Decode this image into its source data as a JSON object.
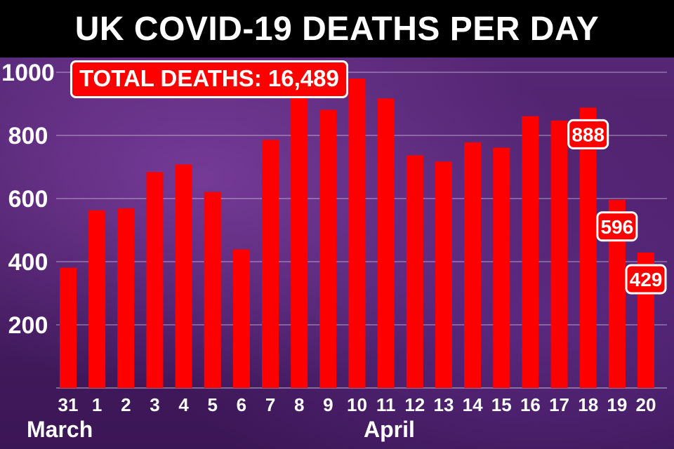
{
  "title": "UK COVID-19 DEATHS PER DAY",
  "total_label": "TOTAL DEATHS: 16,489",
  "months": {
    "first": "March",
    "second": "April"
  },
  "colors": {
    "bar": "#ff0000",
    "title_bg": "#000000",
    "text": "#ffffff",
    "background": "#4a1f66"
  },
  "chart_data": {
    "type": "bar",
    "title": "UK COVID-19 DEATHS PER DAY",
    "xlabel": "",
    "ylabel": "",
    "ylim": [
      0,
      1000
    ],
    "yticks": [
      200,
      400,
      600,
      800,
      1000
    ],
    "grid": true,
    "categories": [
      "31",
      "1",
      "2",
      "3",
      "4",
      "5",
      "6",
      "7",
      "8",
      "9",
      "10",
      "11",
      "12",
      "13",
      "14",
      "15",
      "16",
      "17",
      "18",
      "19",
      "20"
    ],
    "values": [
      381,
      563,
      569,
      684,
      708,
      621,
      439,
      786,
      938,
      881,
      980,
      917,
      737,
      717,
      778,
      761,
      861,
      847,
      888,
      596,
      429
    ],
    "annotations": [
      {
        "category": "18",
        "text": "888"
      },
      {
        "category": "19",
        "text": "596"
      },
      {
        "category": "20",
        "text": "429"
      }
    ]
  }
}
